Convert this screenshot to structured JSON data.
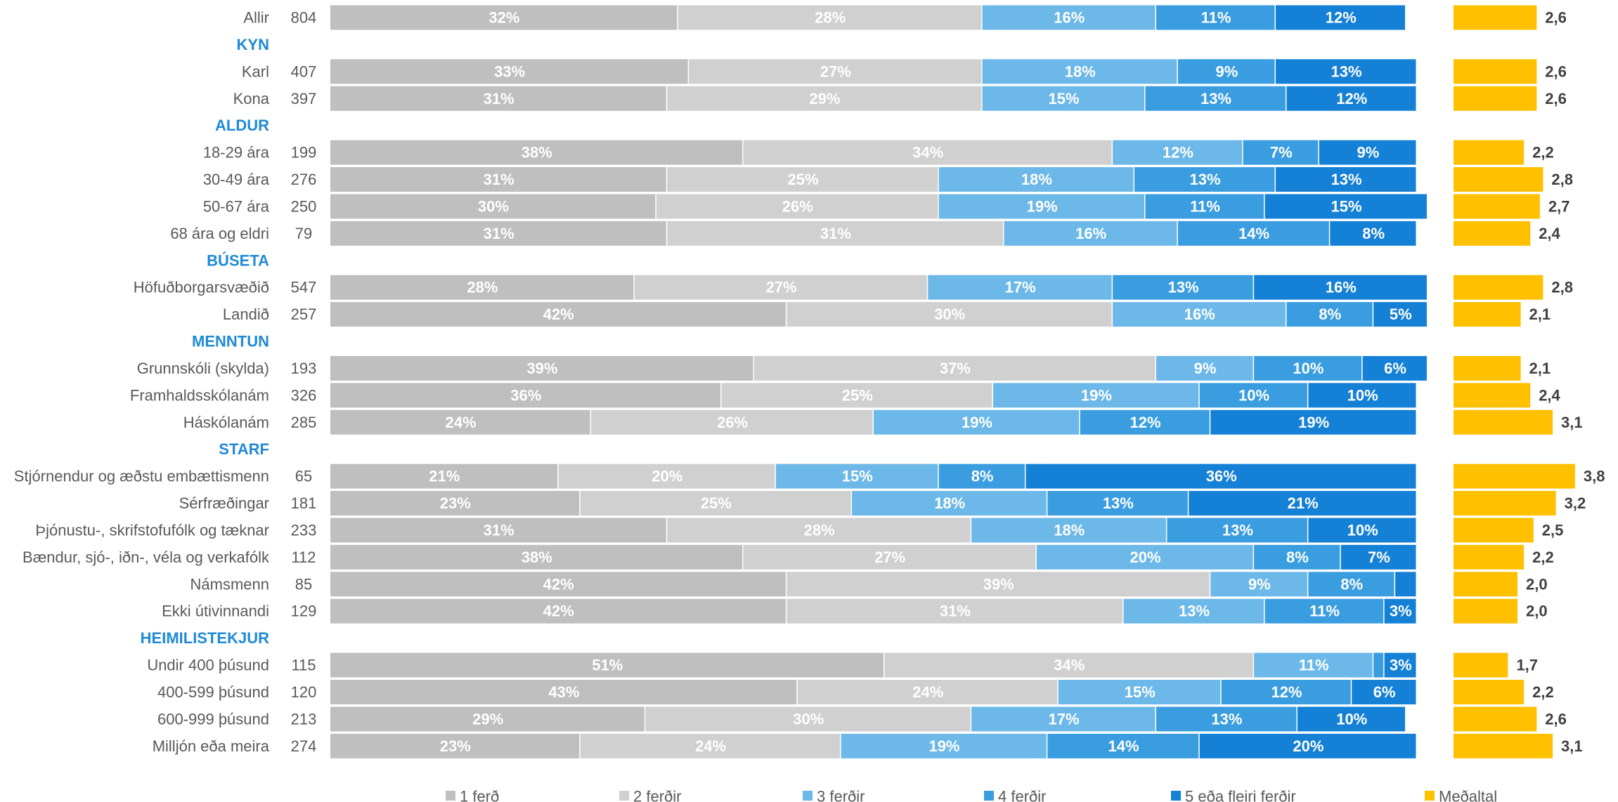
{
  "chart_data": {
    "type": "stacked_bar",
    "xlim": [
      0,
      100
    ],
    "mean_xlim": [
      0,
      4
    ],
    "series": [
      {
        "name": "1 ferð",
        "color": "#bfbfbf"
      },
      {
        "name": "2 ferðir",
        "color": "#d0d0d0"
      },
      {
        "name": "3 ferðir",
        "color": "#6cb8e8"
      },
      {
        "name": "4 ferðir",
        "color": "#3a9de0"
      },
      {
        "name": "5 eða fleiri ferðir",
        "color": "#1480d6"
      }
    ],
    "mean_series": {
      "name": "Meðaltal",
      "color": "#ffc000"
    },
    "rows": [
      {
        "label": "Allir",
        "n": 804,
        "values": [
          32,
          28,
          16,
          11,
          12
        ],
        "value_labels": [
          "32%",
          "28%",
          "16%",
          "11%",
          "12%"
        ],
        "mean": 2.6,
        "mean_label": "2,6"
      },
      {
        "header": "KYN"
      },
      {
        "label": "Karl",
        "n": 407,
        "values": [
          33,
          27,
          18,
          9,
          13
        ],
        "value_labels": [
          "33%",
          "27%",
          "18%",
          "9%",
          "13%"
        ],
        "mean": 2.6,
        "mean_label": "2,6"
      },
      {
        "label": "Kona",
        "n": 397,
        "values": [
          31,
          29,
          15,
          13,
          12
        ],
        "value_labels": [
          "31%",
          "29%",
          "15%",
          "13%",
          "12%"
        ],
        "mean": 2.6,
        "mean_label": "2,6"
      },
      {
        "header": "ALDUR"
      },
      {
        "label": "18-29 ára",
        "n": 199,
        "values": [
          38,
          34,
          12,
          7,
          9
        ],
        "value_labels": [
          "38%",
          "34%",
          "12%",
          "7%",
          "9%"
        ],
        "mean": 2.2,
        "mean_label": "2,2"
      },
      {
        "label": "30-49 ára",
        "n": 276,
        "values": [
          31,
          25,
          18,
          13,
          13
        ],
        "value_labels": [
          "31%",
          "25%",
          "18%",
          "13%",
          "13%"
        ],
        "mean": 2.8,
        "mean_label": "2,8"
      },
      {
        "label": "50-67 ára",
        "n": 250,
        "values": [
          30,
          26,
          19,
          11,
          15
        ],
        "value_labels": [
          "30%",
          "26%",
          "19%",
          "11%",
          "15%"
        ],
        "mean": 2.7,
        "mean_label": "2,7"
      },
      {
        "label": "68 ára og eldri",
        "n": 79,
        "values": [
          31,
          31,
          16,
          14,
          8
        ],
        "value_labels": [
          "31%",
          "31%",
          "16%",
          "14%",
          "8%"
        ],
        "mean": 2.4,
        "mean_label": "2,4"
      },
      {
        "header": "BÚSETA"
      },
      {
        "label": "Höfuðborgarsvæðið",
        "n": 547,
        "values": [
          28,
          27,
          17,
          13,
          16
        ],
        "value_labels": [
          "28%",
          "27%",
          "17%",
          "13%",
          "16%"
        ],
        "mean": 2.8,
        "mean_label": "2,8"
      },
      {
        "label": "Landið",
        "n": 257,
        "values": [
          42,
          30,
          16,
          8,
          5
        ],
        "value_labels": [
          "42%",
          "30%",
          "16%",
          "8%",
          "5%"
        ],
        "mean": 2.1,
        "mean_label": "2,1"
      },
      {
        "header": "MENNTUN"
      },
      {
        "label": "Grunnskóli (skylda)",
        "n": 193,
        "values": [
          39,
          37,
          9,
          10,
          6
        ],
        "value_labels": [
          "39%",
          "37%",
          "9%",
          "10%",
          "6%"
        ],
        "mean": 2.1,
        "mean_label": "2,1"
      },
      {
        "label": "Framhaldsskólanám",
        "n": 326,
        "values": [
          36,
          25,
          19,
          10,
          10
        ],
        "value_labels": [
          "36%",
          "25%",
          "19%",
          "10%",
          "10%"
        ],
        "mean": 2.4,
        "mean_label": "2,4"
      },
      {
        "label": "Háskólanám",
        "n": 285,
        "values": [
          24,
          26,
          19,
          12,
          19
        ],
        "value_labels": [
          "24%",
          "26%",
          "19%",
          "12%",
          "19%"
        ],
        "mean": 3.1,
        "mean_label": "3,1"
      },
      {
        "header": "STARF"
      },
      {
        "label": "Stjórnendur og æðstu embættismenn",
        "n": 65,
        "values": [
          21,
          20,
          15,
          8,
          36
        ],
        "value_labels": [
          "21%",
          "20%",
          "15%",
          "8%",
          "36%"
        ],
        "mean": 3.8,
        "mean_label": "3,8"
      },
      {
        "label": "Sérfræðingar",
        "n": 181,
        "values": [
          23,
          25,
          18,
          13,
          21
        ],
        "value_labels": [
          "23%",
          "25%",
          "18%",
          "13%",
          "21%"
        ],
        "mean": 3.2,
        "mean_label": "3,2"
      },
      {
        "label": "Þjónustu-, skrifstofufólk og tæknar",
        "n": 233,
        "values": [
          31,
          28,
          18,
          13,
          10
        ],
        "value_labels": [
          "31%",
          "28%",
          "18%",
          "13%",
          "10%"
        ],
        "mean": 2.5,
        "mean_label": "2,5"
      },
      {
        "label": "Bændur, sjó-, iðn-, véla og verkafólk",
        "n": 112,
        "values": [
          38,
          27,
          20,
          8,
          7
        ],
        "value_labels": [
          "38%",
          "27%",
          "20%",
          "8%",
          "7%"
        ],
        "mean": 2.2,
        "mean_label": "2,2"
      },
      {
        "label": "Námsmenn",
        "n": 85,
        "values": [
          42,
          39,
          9,
          8,
          2
        ],
        "value_labels": [
          "42%",
          "39%",
          "9%",
          "8%",
          null
        ],
        "mean": 2.0,
        "mean_label": "2,0"
      },
      {
        "label": "Ekki útivinnandi",
        "n": 129,
        "values": [
          42,
          31,
          13,
          11,
          3
        ],
        "value_labels": [
          "42%",
          "31%",
          "13%",
          "11%",
          "3%"
        ],
        "mean": 2.0,
        "mean_label": "2,0"
      },
      {
        "header": "HEIMILISTEKJUR"
      },
      {
        "label": "Undir 400 þúsund",
        "n": 115,
        "values": [
          51,
          34,
          11,
          1,
          3
        ],
        "value_labels": [
          "51%",
          "34%",
          "11%",
          null,
          "3%"
        ],
        "mean": 1.7,
        "mean_label": "1,7"
      },
      {
        "label": "400-599 þúsund",
        "n": 120,
        "values": [
          43,
          24,
          15,
          12,
          6
        ],
        "value_labels": [
          "43%",
          "24%",
          "15%",
          "12%",
          "6%"
        ],
        "mean": 2.2,
        "mean_label": "2,2"
      },
      {
        "label": "600-999 þúsund",
        "n": 213,
        "values": [
          29,
          30,
          17,
          13,
          10
        ],
        "value_labels": [
          "29%",
          "30%",
          "17%",
          "13%",
          "10%"
        ],
        "mean": 2.6,
        "mean_label": "2,6"
      },
      {
        "label": "Milljón eða meira",
        "n": 274,
        "values": [
          23,
          24,
          19,
          14,
          20
        ],
        "value_labels": [
          "23%",
          "24%",
          "19%",
          "14%",
          "20%"
        ],
        "mean": 3.1,
        "mean_label": "3,1"
      }
    ]
  }
}
